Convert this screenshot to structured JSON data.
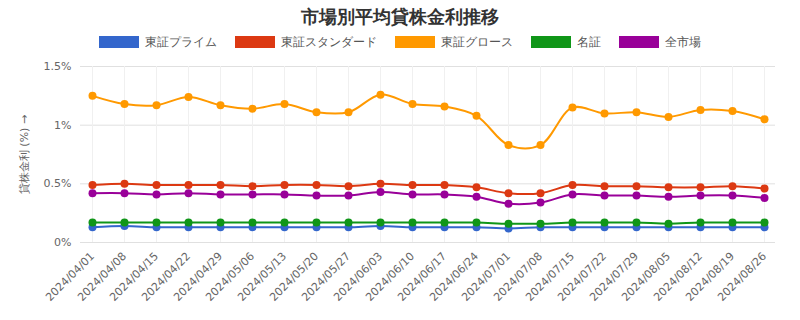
{
  "chart_data": {
    "type": "line",
    "title": "市場別平均貸株金利推移",
    "y_label": "貸株金利 (%)",
    "categories": [
      "2024/04/01",
      "2024/04/08",
      "2024/04/15",
      "2024/04/22",
      "2024/04/29",
      "2024/05/06",
      "2024/05/13",
      "2024/05/20",
      "2024/05/27",
      "2024/06/03",
      "2024/06/10",
      "2024/06/17",
      "2024/06/24",
      "2024/07/01",
      "2024/07/08",
      "2024/07/15",
      "2024/07/22",
      "2024/07/29",
      "2024/08/05",
      "2024/08/12",
      "2024/08/19",
      "2024/08/26"
    ],
    "series": [
      {
        "name": "東証プライム",
        "color": "#3366cc",
        "values": [
          0.13,
          0.14,
          0.13,
          0.13,
          0.13,
          0.13,
          0.13,
          0.13,
          0.13,
          0.14,
          0.13,
          0.13,
          0.13,
          0.12,
          0.13,
          0.13,
          0.13,
          0.13,
          0.13,
          0.13,
          0.13,
          0.13
        ]
      },
      {
        "name": "東証スタンダード",
        "color": "#dc3912",
        "values": [
          0.49,
          0.5,
          0.49,
          0.49,
          0.49,
          0.48,
          0.49,
          0.49,
          0.48,
          0.5,
          0.49,
          0.49,
          0.47,
          0.42,
          0.42,
          0.49,
          0.48,
          0.48,
          0.47,
          0.47,
          0.48,
          0.46
        ]
      },
      {
        "name": "東証グロース",
        "color": "#ff9900",
        "values": [
          1.25,
          1.18,
          1.17,
          1.24,
          1.17,
          1.14,
          1.18,
          1.11,
          1.11,
          1.26,
          1.18,
          1.16,
          1.08,
          0.83,
          0.83,
          1.15,
          1.1,
          1.11,
          1.07,
          1.13,
          1.12,
          1.05
        ]
      },
      {
        "name": "名証",
        "color": "#109618",
        "values": [
          0.17,
          0.17,
          0.17,
          0.17,
          0.17,
          0.17,
          0.17,
          0.17,
          0.17,
          0.17,
          0.17,
          0.17,
          0.17,
          0.16,
          0.16,
          0.17,
          0.17,
          0.17,
          0.16,
          0.17,
          0.17,
          0.17
        ]
      },
      {
        "name": "全市場",
        "color": "#990099",
        "values": [
          0.42,
          0.42,
          0.41,
          0.42,
          0.41,
          0.41,
          0.41,
          0.4,
          0.4,
          0.43,
          0.41,
          0.41,
          0.39,
          0.33,
          0.34,
          0.41,
          0.4,
          0.4,
          0.39,
          0.4,
          0.4,
          0.38
        ]
      }
    ],
    "ylim": [
      0,
      1.5
    ],
    "yticks": [
      {
        "value": 0,
        "label": "0%"
      },
      {
        "value": 0.5,
        "label": "0.5%"
      },
      {
        "value": 1,
        "label": "1%"
      },
      {
        "value": 1.5,
        "label": "1.5%"
      }
    ],
    "grid": true,
    "legend": "top",
    "marker": "circle",
    "line_style": "solid"
  }
}
